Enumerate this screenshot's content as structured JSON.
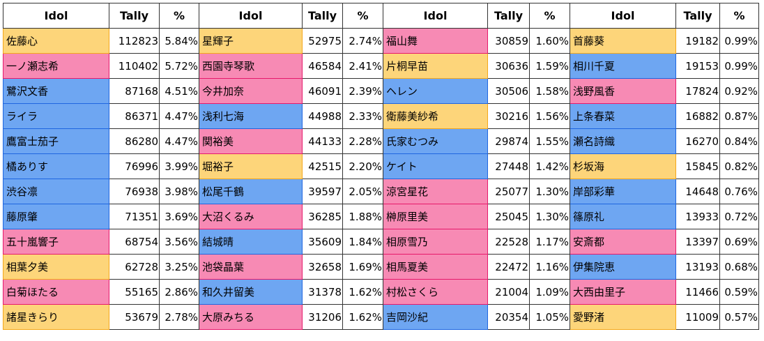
{
  "headers": {
    "idol": "Idol",
    "tally": "Tally",
    "pct": "%"
  },
  "type_colors": {
    "cute": "#f78ab4",
    "cool": "#6ea6f2",
    "passion": "#fdd57a"
  },
  "columns": [
    [
      {
        "name": "佐藤心",
        "tally": "112823",
        "pct": "5.84%",
        "type": "passion"
      },
      {
        "name": "一ノ瀬志希",
        "tally": "110402",
        "pct": "5.72%",
        "type": "cute"
      },
      {
        "name": "鷺沢文香",
        "tally": "87168",
        "pct": "4.51%",
        "type": "cool"
      },
      {
        "name": "ライラ",
        "tally": "86371",
        "pct": "4.47%",
        "type": "cool"
      },
      {
        "name": "鷹富士茄子",
        "tally": "86280",
        "pct": "4.47%",
        "type": "cool"
      },
      {
        "name": "橘ありす",
        "tally": "76996",
        "pct": "3.99%",
        "type": "cool"
      },
      {
        "name": "渋谷凛",
        "tally": "76938",
        "pct": "3.98%",
        "type": "cool"
      },
      {
        "name": "藤原肇",
        "tally": "71351",
        "pct": "3.69%",
        "type": "cool"
      },
      {
        "name": "五十嵐響子",
        "tally": "68754",
        "pct": "3.56%",
        "type": "cute"
      },
      {
        "name": "相葉夕美",
        "tally": "62728",
        "pct": "3.25%",
        "type": "passion"
      },
      {
        "name": "白菊ほたる",
        "tally": "55165",
        "pct": "2.86%",
        "type": "cute"
      },
      {
        "name": "諸星きらり",
        "tally": "53679",
        "pct": "2.78%",
        "type": "passion"
      }
    ],
    [
      {
        "name": "星輝子",
        "tally": "52975",
        "pct": "2.74%",
        "type": "passion"
      },
      {
        "name": "西園寺琴歌",
        "tally": "46584",
        "pct": "2.41%",
        "type": "cute"
      },
      {
        "name": "今井加奈",
        "tally": "46091",
        "pct": "2.39%",
        "type": "cute"
      },
      {
        "name": "浅利七海",
        "tally": "44988",
        "pct": "2.33%",
        "type": "cool"
      },
      {
        "name": "関裕美",
        "tally": "44133",
        "pct": "2.28%",
        "type": "cute"
      },
      {
        "name": "堀裕子",
        "tally": "42515",
        "pct": "2.20%",
        "type": "passion"
      },
      {
        "name": "松尾千鶴",
        "tally": "39597",
        "pct": "2.05%",
        "type": "cool"
      },
      {
        "name": "大沼くるみ",
        "tally": "36285",
        "pct": "1.88%",
        "type": "cute"
      },
      {
        "name": "結城晴",
        "tally": "35609",
        "pct": "1.84%",
        "type": "cool"
      },
      {
        "name": "池袋晶葉",
        "tally": "32658",
        "pct": "1.69%",
        "type": "cute"
      },
      {
        "name": "和久井留美",
        "tally": "31378",
        "pct": "1.62%",
        "type": "cool"
      },
      {
        "name": "大原みちる",
        "tally": "31206",
        "pct": "1.62%",
        "type": "cute"
      }
    ],
    [
      {
        "name": "福山舞",
        "tally": "30859",
        "pct": "1.60%",
        "type": "cute"
      },
      {
        "name": "片桐早苗",
        "tally": "30636",
        "pct": "1.59%",
        "type": "passion"
      },
      {
        "name": "ヘレン",
        "tally": "30506",
        "pct": "1.58%",
        "type": "cool"
      },
      {
        "name": "衛藤美紗希",
        "tally": "30216",
        "pct": "1.56%",
        "type": "passion"
      },
      {
        "name": "氏家むつみ",
        "tally": "29874",
        "pct": "1.55%",
        "type": "cool"
      },
      {
        "name": "ケイト",
        "tally": "27448",
        "pct": "1.42%",
        "type": "cool"
      },
      {
        "name": "涼宮星花",
        "tally": "25077",
        "pct": "1.30%",
        "type": "cute"
      },
      {
        "name": "榊原里美",
        "tally": "25045",
        "pct": "1.30%",
        "type": "cute"
      },
      {
        "name": "相原雪乃",
        "tally": "22528",
        "pct": "1.17%",
        "type": "cute"
      },
      {
        "name": "相馬夏美",
        "tally": "22472",
        "pct": "1.16%",
        "type": "cute"
      },
      {
        "name": "村松さくら",
        "tally": "21004",
        "pct": "1.09%",
        "type": "cute"
      },
      {
        "name": "吉岡沙紀",
        "tally": "20354",
        "pct": "1.05%",
        "type": "cool"
      }
    ],
    [
      {
        "name": "首藤葵",
        "tally": "19182",
        "pct": "0.99%",
        "type": "passion"
      },
      {
        "name": "相川千夏",
        "tally": "19153",
        "pct": "0.99%",
        "type": "cool"
      },
      {
        "name": "浅野風香",
        "tally": "17824",
        "pct": "0.92%",
        "type": "cute"
      },
      {
        "name": "上条春菜",
        "tally": "16882",
        "pct": "0.87%",
        "type": "cool"
      },
      {
        "name": "瀬名詩織",
        "tally": "16270",
        "pct": "0.84%",
        "type": "cool"
      },
      {
        "name": "杉坂海",
        "tally": "15845",
        "pct": "0.82%",
        "type": "passion"
      },
      {
        "name": "岸部彩華",
        "tally": "14648",
        "pct": "0.76%",
        "type": "cool"
      },
      {
        "name": "篠原礼",
        "tally": "13933",
        "pct": "0.72%",
        "type": "cool"
      },
      {
        "name": "安斎都",
        "tally": "13397",
        "pct": "0.69%",
        "type": "cute"
      },
      {
        "name": "伊集院恵",
        "tally": "13193",
        "pct": "0.68%",
        "type": "cool"
      },
      {
        "name": "大西由里子",
        "tally": "11466",
        "pct": "0.59%",
        "type": "cute"
      },
      {
        "name": "愛野渚",
        "tally": "11009",
        "pct": "0.57%",
        "type": "passion"
      }
    ]
  ]
}
